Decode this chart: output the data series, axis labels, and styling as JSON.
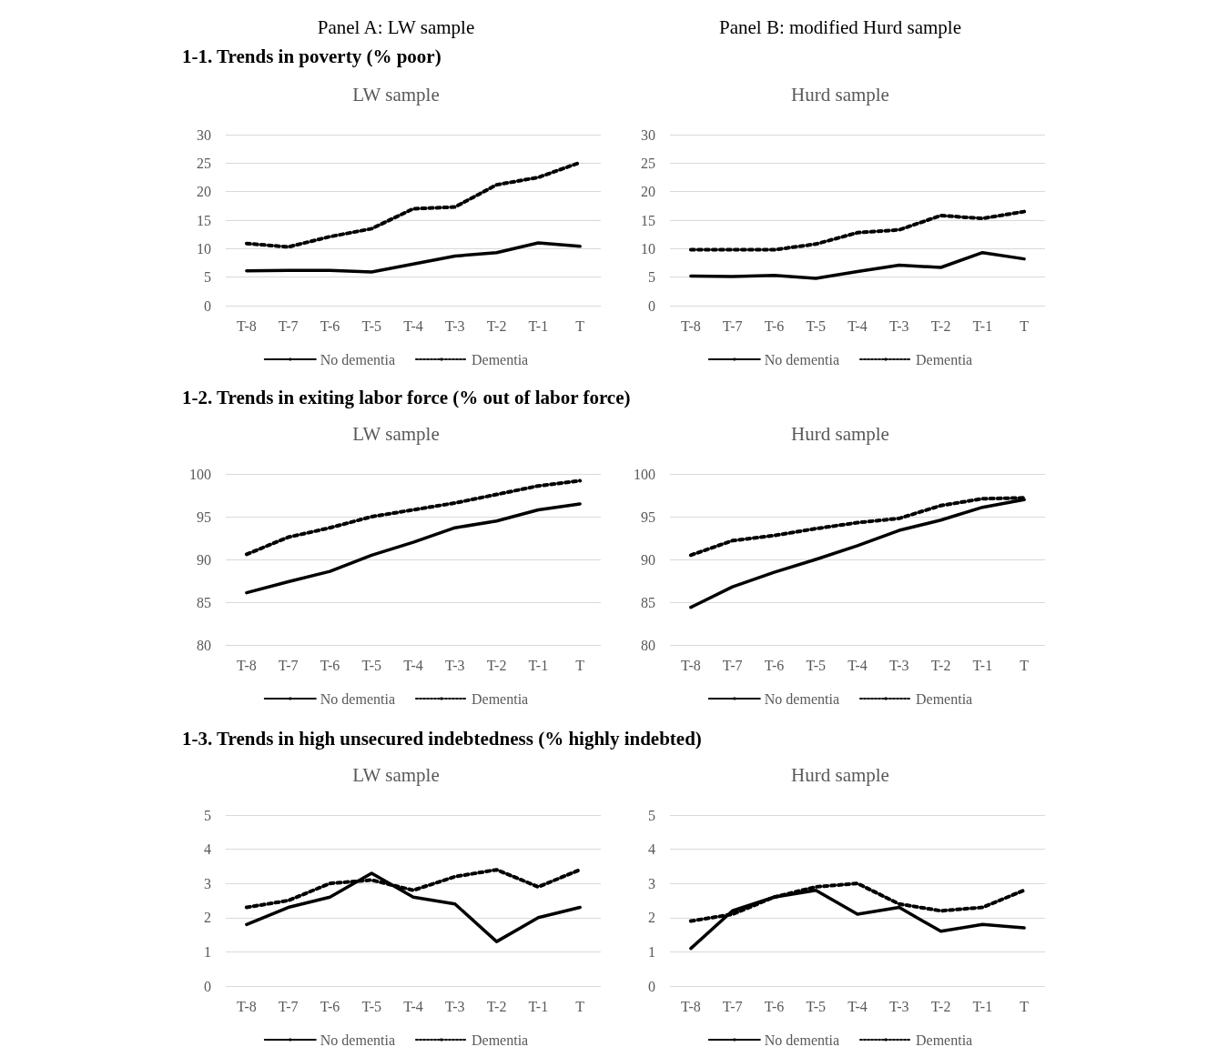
{
  "chart_data": [
    {
      "type": "line",
      "title": "LW sample",
      "annotations": [
        "Panel A: LW sample",
        "1-1. Trends in poverty (% poor)"
      ],
      "categories": [
        "T-8",
        "T-7",
        "T-6",
        "T-5",
        "T-4",
        "T-3",
        "T-2",
        "T-1",
        "T"
      ],
      "ylim": [
        0,
        30
      ],
      "yticks": [
        0,
        5,
        10,
        15,
        20,
        25,
        30
      ],
      "grid": "y",
      "legend": "bottom",
      "series": [
        {
          "name": "No dementia",
          "color": "#000000",
          "line_style": "solid",
          "values": [
            6.1,
            6.2,
            6.2,
            5.9,
            7.3,
            8.7,
            9.3,
            11.0,
            10.4
          ]
        },
        {
          "name": "Dementia",
          "color": "#000000",
          "line_style": "dotted",
          "values": [
            10.9,
            10.3,
            12.1,
            13.5,
            17.0,
            17.3,
            21.2,
            22.5,
            25.1
          ]
        }
      ]
    },
    {
      "type": "line",
      "title": "Hurd sample",
      "annotations": [
        "Panel B: modified Hurd sample"
      ],
      "categories": [
        "T-8",
        "T-7",
        "T-6",
        "T-5",
        "T-4",
        "T-3",
        "T-2",
        "T-1",
        "T"
      ],
      "ylim": [
        0,
        30
      ],
      "yticks": [
        0,
        5,
        10,
        15,
        20,
        25,
        30
      ],
      "grid": "y",
      "legend": "bottom",
      "series": [
        {
          "name": "No dementia",
          "color": "#000000",
          "line_style": "solid",
          "values": [
            5.2,
            5.1,
            5.3,
            4.8,
            6.0,
            7.1,
            6.7,
            9.3,
            8.2
          ]
        },
        {
          "name": "Dementia",
          "color": "#000000",
          "line_style": "dotted",
          "values": [
            9.8,
            9.8,
            9.8,
            10.8,
            12.8,
            13.3,
            15.8,
            15.3,
            16.5
          ]
        }
      ]
    },
    {
      "type": "line",
      "title": "LW sample",
      "annotations": [
        "1-2. Trends in exiting labor force (% out of labor force)"
      ],
      "categories": [
        "T-8",
        "T-7",
        "T-6",
        "T-5",
        "T-4",
        "T-3",
        "T-2",
        "T-1",
        "T"
      ],
      "ylim": [
        80,
        100
      ],
      "yticks": [
        80,
        85,
        90,
        95,
        100
      ],
      "grid": "y",
      "legend": "bottom",
      "series": [
        {
          "name": "No dementia",
          "color": "#000000",
          "line_style": "solid",
          "values": [
            86.1,
            87.4,
            88.6,
            90.5,
            92.0,
            93.7,
            94.5,
            95.8,
            96.5
          ]
        },
        {
          "name": "Dementia",
          "color": "#000000",
          "line_style": "dotted",
          "values": [
            90.6,
            92.6,
            93.7,
            95.0,
            95.8,
            96.6,
            97.6,
            98.6,
            99.2
          ]
        }
      ]
    },
    {
      "type": "line",
      "title": "Hurd sample",
      "categories": [
        "T-8",
        "T-7",
        "T-6",
        "T-5",
        "T-4",
        "T-3",
        "T-2",
        "T-1",
        "T"
      ],
      "ylim": [
        80,
        100
      ],
      "yticks": [
        80,
        85,
        90,
        95,
        100
      ],
      "grid": "y",
      "legend": "bottom",
      "series": [
        {
          "name": "No dementia",
          "color": "#000000",
          "line_style": "solid",
          "values": [
            84.4,
            86.8,
            88.5,
            90.0,
            91.6,
            93.4,
            94.6,
            96.1,
            97.0
          ]
        },
        {
          "name": "Dementia",
          "color": "#000000",
          "line_style": "dotted",
          "values": [
            90.5,
            92.2,
            92.8,
            93.6,
            94.3,
            94.8,
            96.3,
            97.1,
            97.2
          ]
        }
      ]
    },
    {
      "type": "line",
      "title": "LW sample",
      "annotations": [
        "1-3. Trends in high unsecured indebtedness (% highly indebted)"
      ],
      "categories": [
        "T-8",
        "T-7",
        "T-6",
        "T-5",
        "T-4",
        "T-3",
        "T-2",
        "T-1",
        "T"
      ],
      "ylim": [
        0,
        5
      ],
      "yticks": [
        0,
        1,
        2,
        3,
        4,
        5
      ],
      "grid": "y",
      "legend": "bottom",
      "series": [
        {
          "name": "No dementia",
          "color": "#000000",
          "line_style": "solid",
          "values": [
            1.8,
            2.3,
            2.6,
            3.3,
            2.6,
            2.4,
            1.3,
            2.0,
            2.3
          ]
        },
        {
          "name": "Dementia",
          "color": "#000000",
          "line_style": "dotted",
          "values": [
            2.3,
            2.5,
            3.0,
            3.1,
            2.8,
            3.2,
            3.4,
            2.9,
            3.4
          ]
        }
      ]
    },
    {
      "type": "line",
      "title": "Hurd sample",
      "categories": [
        "T-8",
        "T-7",
        "T-6",
        "T-5",
        "T-4",
        "T-3",
        "T-2",
        "T-1",
        "T"
      ],
      "ylim": [
        0,
        5
      ],
      "yticks": [
        0,
        1,
        2,
        3,
        4,
        5
      ],
      "grid": "y",
      "legend": "bottom",
      "series": [
        {
          "name": "No dementia",
          "color": "#000000",
          "line_style": "solid",
          "values": [
            1.1,
            2.2,
            2.6,
            2.8,
            2.1,
            2.3,
            1.6,
            1.8,
            1.7
          ]
        },
        {
          "name": "Dementia",
          "color": "#000000",
          "line_style": "dotted",
          "values": [
            1.9,
            2.1,
            2.6,
            2.9,
            3.0,
            2.4,
            2.2,
            2.3,
            2.8
          ]
        }
      ]
    }
  ]
}
